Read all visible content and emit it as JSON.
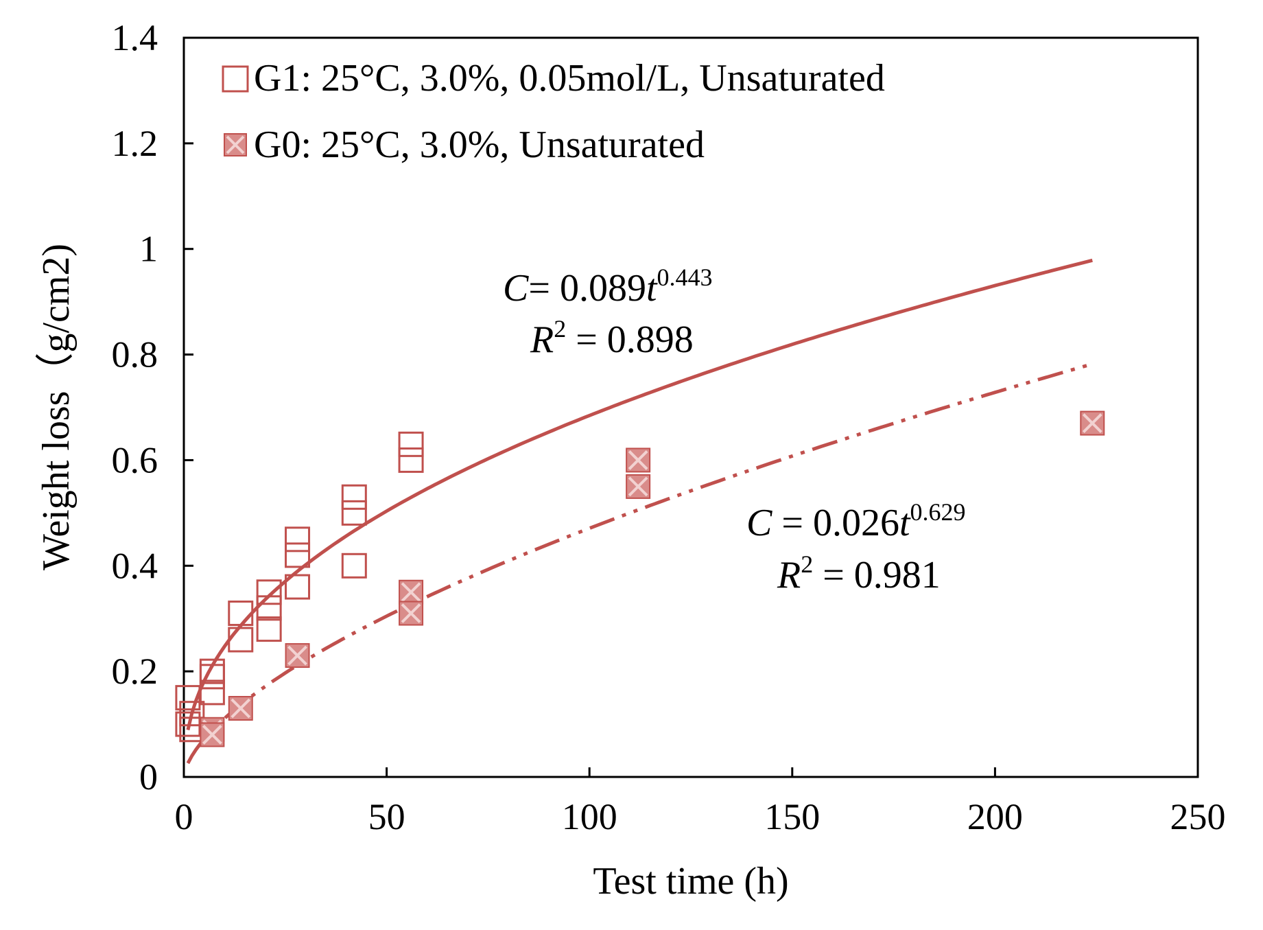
{
  "chart_data": {
    "type": "scatter",
    "xlabel": "Test time (h)",
    "ylabel": "Weight loss（g/cm2)",
    "xlim": [
      0,
      250
    ],
    "ylim": [
      0,
      1.4
    ],
    "xticks": [
      "0",
      "50",
      "100",
      "150",
      "200",
      "250"
    ],
    "yticks": [
      "0",
      "0.2",
      "0.4",
      "0.6",
      "0.8",
      "1",
      "1.2",
      "1.4"
    ],
    "grid": false,
    "legend_position": "top-left",
    "colors": {
      "series": "#c0504d",
      "marker_fill": "#d98c8a",
      "cross": "#f2d2d1"
    },
    "series": [
      {
        "name": "G1: 25°C, 3.0%, 0.05mol/L, Unsaturated",
        "marker": "open-square",
        "points": [
          [
            1,
            0.15
          ],
          [
            1,
            0.1
          ],
          [
            2,
            0.12
          ],
          [
            2,
            0.09
          ],
          [
            7,
            0.2
          ],
          [
            7,
            0.19
          ],
          [
            7,
            0.16
          ],
          [
            14,
            0.31
          ],
          [
            14,
            0.26
          ],
          [
            21,
            0.35
          ],
          [
            21,
            0.32
          ],
          [
            21,
            0.28
          ],
          [
            28,
            0.45
          ],
          [
            28,
            0.42
          ],
          [
            28,
            0.36
          ],
          [
            42,
            0.53
          ],
          [
            42,
            0.5
          ],
          [
            42,
            0.4
          ],
          [
            56,
            0.63
          ],
          [
            56,
            0.6
          ]
        ],
        "fit": {
          "type": "power",
          "a": 0.089,
          "b": 0.443,
          "line": "solid"
        },
        "equation": {
          "lhs": "C",
          "eq": "= 0.089",
          "var": "t",
          "exp": "0.443",
          "r2_label": "R",
          "r2_exp": "2",
          "r2_value": " = 0.898"
        }
      },
      {
        "name": "G0: 25°C, 3.0%, Unsaturated",
        "marker": "filled-square-cross",
        "points": [
          [
            7,
            0.09
          ],
          [
            7,
            0.08
          ],
          [
            14,
            0.13
          ],
          [
            28,
            0.23
          ],
          [
            56,
            0.35
          ],
          [
            56,
            0.31
          ],
          [
            112,
            0.6
          ],
          [
            112,
            0.55
          ],
          [
            224,
            0.67
          ]
        ],
        "fit": {
          "type": "power",
          "a": 0.026,
          "b": 0.629,
          "line": "dash-dot-dot"
        },
        "equation": {
          "lhs": "C",
          "eq": " = 0.026",
          "var": "t",
          "exp": "0.629",
          "r2_label": "R",
          "r2_exp": "2",
          "r2_value": " = 0.981"
        }
      }
    ]
  }
}
